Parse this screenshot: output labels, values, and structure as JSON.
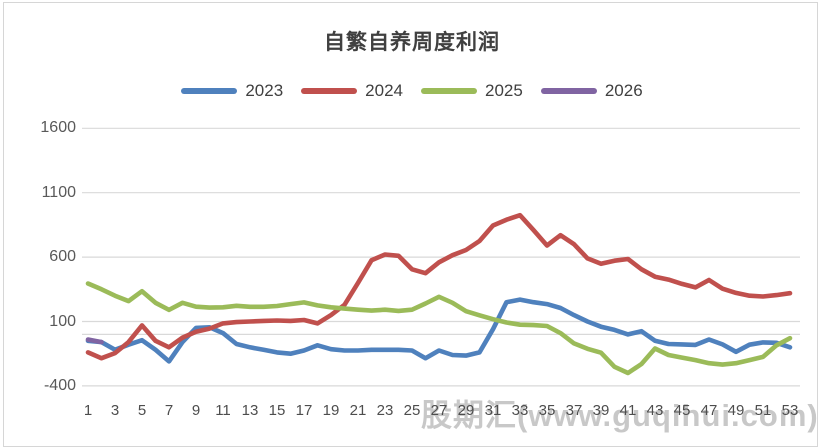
{
  "chart_data": {
    "type": "line",
    "title": "自繁自养周度利润",
    "legend_position": "top",
    "grid": true,
    "zero_axis_line": true,
    "x_range": [
      1,
      53
    ],
    "y_range": [
      -400,
      1600
    ],
    "x_ticks": [
      1,
      3,
      5,
      7,
      9,
      11,
      13,
      15,
      17,
      19,
      21,
      23,
      25,
      27,
      29,
      31,
      33,
      35,
      37,
      39,
      41,
      43,
      45,
      47,
      49,
      51,
      53
    ],
    "y_ticks": [
      1600,
      1100,
      600,
      100,
      -400
    ],
    "series": [
      {
        "name": "2023",
        "color": "#4F81BD",
        "values": [
          -50,
          -60,
          -120,
          -80,
          -45,
          -120,
          -210,
          -60,
          50,
          55,
          10,
          -75,
          -100,
          -120,
          -140,
          -150,
          -125,
          -85,
          -115,
          -125,
          -125,
          -120,
          -120,
          -120,
          -125,
          -185,
          -125,
          -160,
          -165,
          -140,
          40,
          250,
          270,
          250,
          235,
          205,
          150,
          100,
          60,
          35,
          0,
          25,
          -50,
          -75,
          -78,
          -82,
          -40,
          -78,
          -135,
          -80,
          -62,
          -65,
          -100
        ]
      },
      {
        "name": "2024",
        "color": "#C0504D",
        "values": [
          -140,
          -185,
          -145,
          -60,
          70,
          -50,
          -100,
          -25,
          20,
          45,
          85,
          95,
          100,
          105,
          108,
          105,
          112,
          85,
          150,
          230,
          400,
          575,
          620,
          610,
          505,
          475,
          560,
          615,
          655,
          725,
          845,
          890,
          925,
          810,
          690,
          770,
          700,
          590,
          548,
          572,
          585,
          505,
          448,
          425,
          392,
          365,
          422,
          355,
          322,
          300,
          294,
          305,
          320
        ]
      },
      {
        "name": "2025",
        "color": "#9BBB59",
        "values": [
          395,
          350,
          300,
          258,
          335,
          245,
          190,
          245,
          215,
          208,
          210,
          222,
          214,
          214,
          220,
          235,
          248,
          225,
          210,
          200,
          192,
          185,
          192,
          182,
          192,
          240,
          292,
          245,
          180,
          148,
          118,
          92,
          75,
          72,
          65,
          10,
          -70,
          -112,
          -142,
          -252,
          -300,
          -230,
          -110,
          -160,
          -180,
          -200,
          -224,
          -235,
          -224,
          -200,
          -175,
          -85,
          -30
        ]
      },
      {
        "name": "2026",
        "color": "#8064A2",
        "values": [
          -40,
          -60
        ]
      }
    ]
  },
  "watermark": {
    "text": "股期汇(www.guqihui.com)"
  },
  "colors": {
    "background": "#FFFFFF",
    "gridline": "#D9D9D9",
    "frame_border": "#D6D6D6",
    "axis_text": "#595959",
    "title_text": "#404040"
  }
}
